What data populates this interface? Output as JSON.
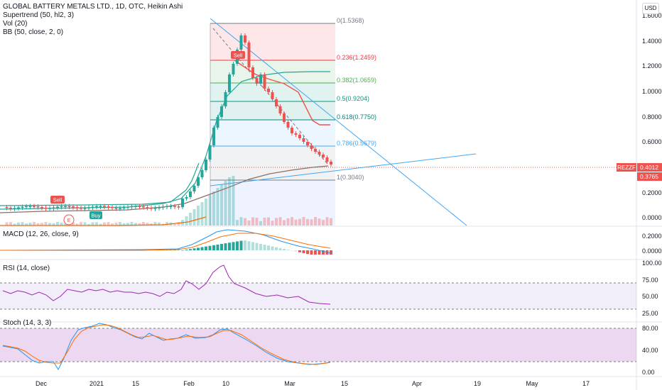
{
  "header": {
    "title": "GLOBAL BATTERY METALS LTD., 1D, OTC, Heikin Ashi",
    "indicators": [
      "Supertrend (50, hl2, 3)",
      "Vol (20)",
      "BB (50, close, 2, 0)"
    ],
    "currency": "USD"
  },
  "price_axis": {
    "ticks": [
      "1.6000",
      "1.4000",
      "1.2000",
      "1.0000",
      "0.8000",
      "0.6000",
      "0.4000",
      "0.2000",
      "0.0000"
    ],
    "symbol_tag": "REZZF",
    "last_price": "0.4012",
    "second_price": "0.3765"
  },
  "fib_levels": [
    {
      "label": "0(1.5368)",
      "color": "#787b86"
    },
    {
      "label": "0.236(1.2459)",
      "color": "#f23645"
    },
    {
      "label": "0.382(1.0659)",
      "color": "#4caf50"
    },
    {
      "label": "0.5(0.9204)",
      "color": "#089981"
    },
    {
      "label": "0.618(0.7750)",
      "color": "#00897b"
    },
    {
      "label": "0.786(0.5679)",
      "color": "#42a5f5"
    },
    {
      "label": "1(0.3040)",
      "color": "#787b86"
    }
  ],
  "signals": {
    "sell1": "Sell",
    "buy": "Buy",
    "sell2": "Sell",
    "earnings": "E"
  },
  "macd": {
    "title": "MACD (12, 26, close, 9)",
    "ticks": [
      "0.2000",
      "0.0000"
    ]
  },
  "rsi": {
    "title": "RSI (14, close)",
    "ticks": [
      "100.00",
      "75.00",
      "50.00",
      "25.00"
    ]
  },
  "stoch": {
    "title": "Stoch (14, 3, 3)",
    "ticks": [
      "80.00",
      "40.00",
      "0.00"
    ]
  },
  "time_axis": {
    "labels": [
      "Dec",
      "2021",
      "15",
      "Feb",
      "10",
      "Mar",
      "15",
      "Apr",
      "19",
      "May",
      "17"
    ]
  },
  "colors": {
    "up": "#26a69a",
    "down": "#ef5350",
    "accent": "#2962ff"
  }
}
